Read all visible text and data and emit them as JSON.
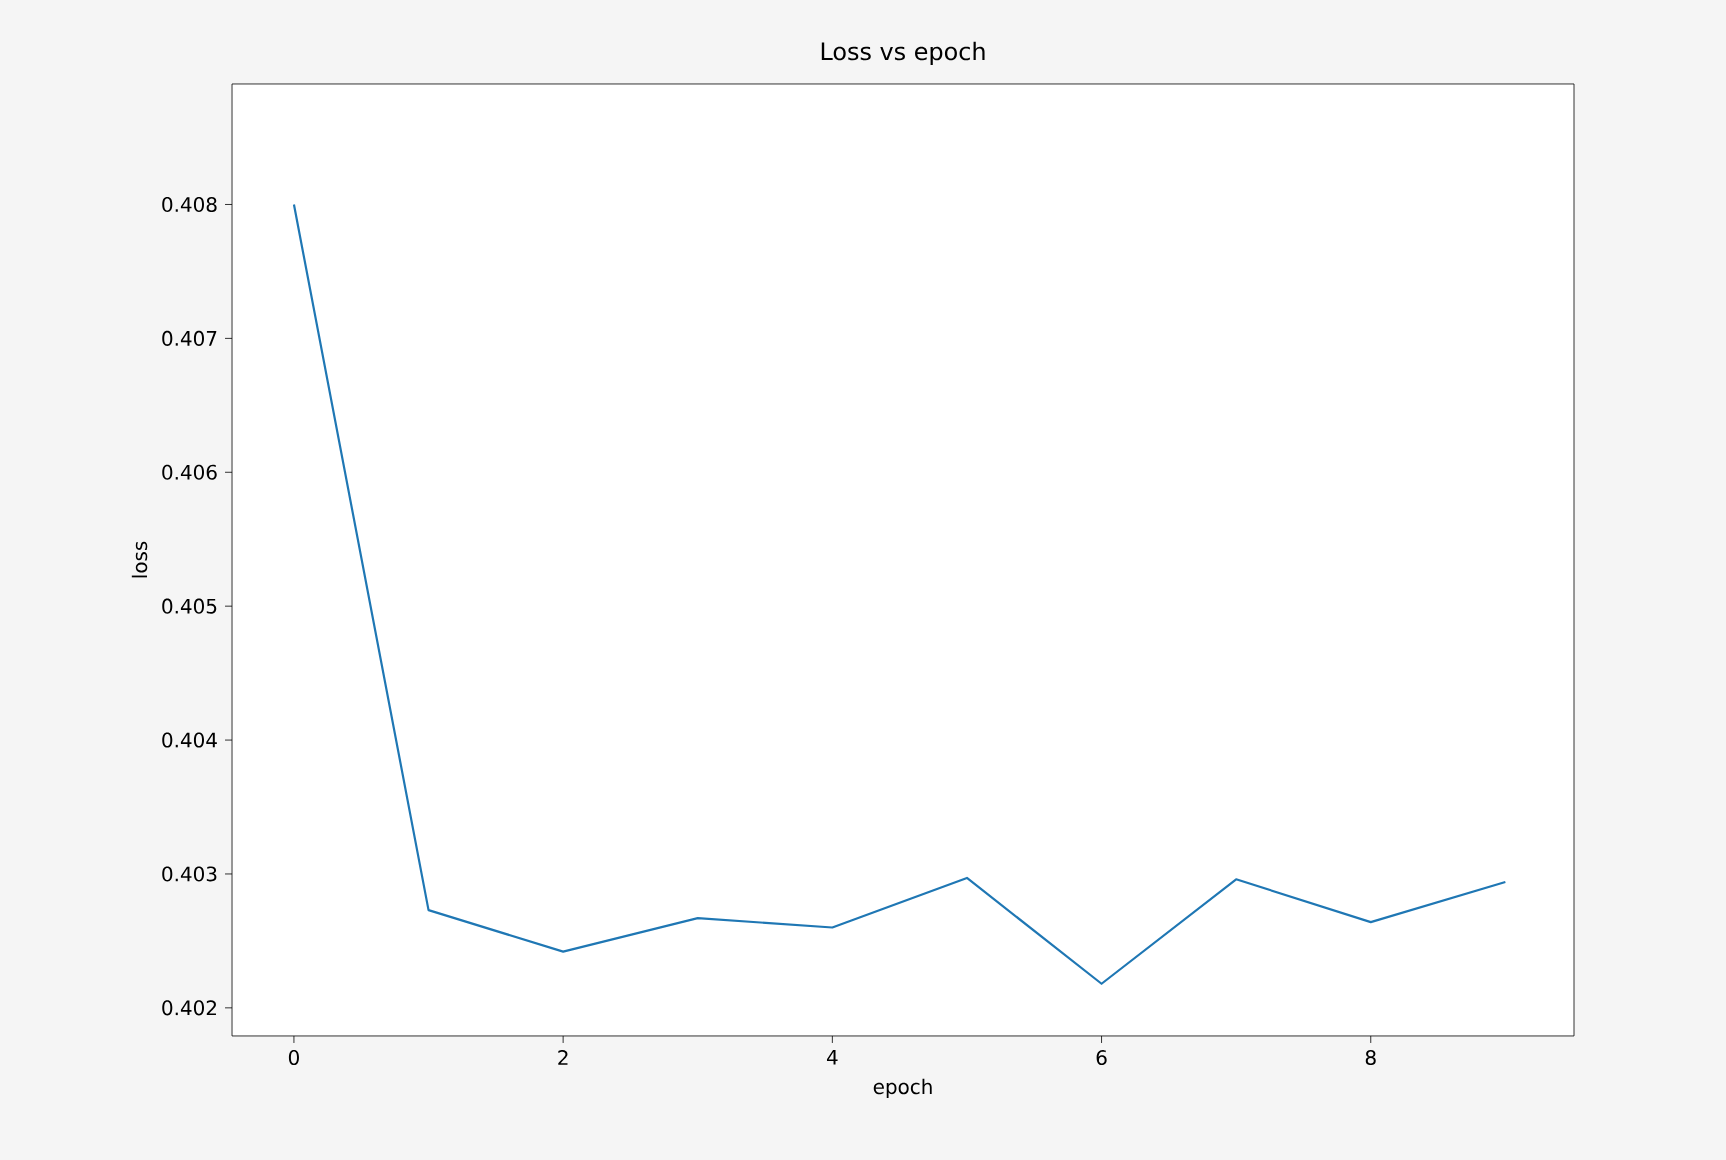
{
  "chart_data": {
    "type": "line",
    "title": "Loss vs epoch",
    "xlabel": "epoch",
    "ylabel": "loss",
    "x": [
      0,
      1,
      2,
      3,
      4,
      5,
      6,
      7,
      8,
      9
    ],
    "series": [
      {
        "color": "#1f77b4",
        "values": [
          0.408,
          0.40273,
          0.40242,
          0.40267,
          0.4026,
          0.40297,
          0.40218,
          0.40296,
          0.40264,
          0.40294
        ]
      }
    ],
    "xlim": [
      -0.46,
      9.51
    ],
    "ylim": [
      0.40179,
      0.4089
    ],
    "xticks": [
      0,
      2,
      4,
      6,
      8
    ],
    "yticks": [
      0.402,
      0.403,
      0.404,
      0.405,
      0.406,
      0.407,
      0.408
    ],
    "grid": false,
    "marker": "none",
    "line_style": "solid"
  }
}
